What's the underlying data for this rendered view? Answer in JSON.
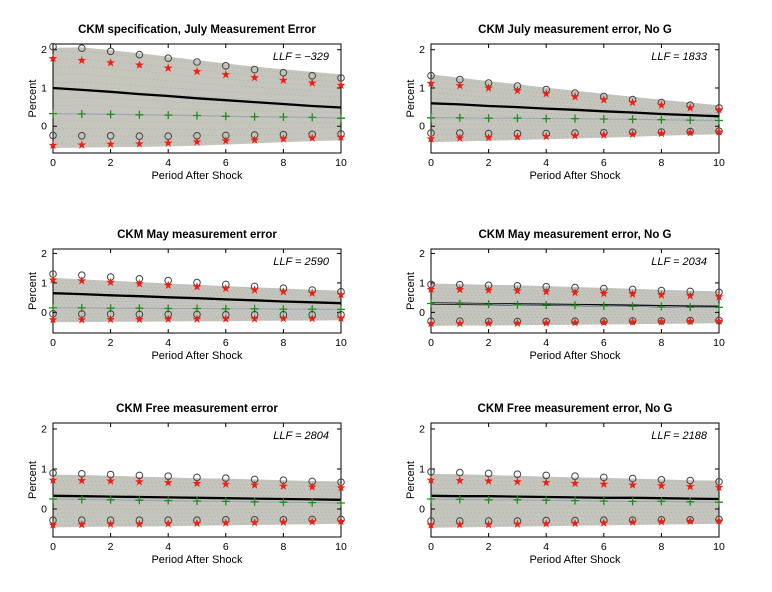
{
  "figure": {
    "background": "#ffffff",
    "xlabel": "Period After Shock",
    "ylabel": "Percent",
    "x_ticks": [
      0,
      2,
      4,
      6,
      8,
      10
    ],
    "y_ticks": [
      0,
      1,
      2
    ],
    "xlim": [
      0,
      10
    ],
    "ylim": [
      -0.7,
      2.15
    ],
    "x_values": [
      0,
      1,
      2,
      3,
      4,
      5,
      6,
      7,
      8,
      9,
      10
    ],
    "grid": false,
    "legend": "none"
  },
  "style": {
    "band_fill": "#c5c5bc",
    "speckle": "#9ea6c6",
    "axis_color": "#000000",
    "line_color": "#000000",
    "star_color": "#ee2014",
    "circle_color": "#424242",
    "plus_color": "#1e8c1e",
    "plus_line_color": "#96a6b4"
  },
  "chart_data": [
    {
      "type": "line",
      "title": "CKM specification, July Measurement Error",
      "llf": "LLF = −329",
      "band": {
        "upper": [
          2.05,
          2.06,
          1.99,
          1.91,
          1.82,
          1.73,
          1.64,
          1.56,
          1.49,
          1.42,
          1.36
        ],
        "lower": [
          -0.57,
          -0.56,
          -0.55,
          -0.54,
          -0.53,
          -0.51,
          -0.48,
          -0.45,
          -0.42,
          -0.39,
          -0.37
        ]
      },
      "series": [
        {
          "name": "upper-confidence-circles",
          "marker": "circle",
          "values": [
            2.08,
            2.04,
            1.96,
            1.87,
            1.78,
            1.68,
            1.58,
            1.48,
            1.4,
            1.32,
            1.26
          ]
        },
        {
          "name": "upper-confidence-stars",
          "marker": "star",
          "values": [
            1.77,
            1.72,
            1.66,
            1.6,
            1.52,
            1.43,
            1.35,
            1.27,
            1.2,
            1.13,
            1.07
          ]
        },
        {
          "name": "point-estimate",
          "line": "solid",
          "values": [
            1.0,
            0.95,
            0.9,
            0.84,
            0.79,
            0.73,
            0.68,
            0.63,
            0.58,
            0.53,
            0.49
          ]
        },
        {
          "name": "true-response-plus",
          "marker": "plus",
          "line": "thin",
          "values": [
            0.33,
            0.32,
            0.31,
            0.3,
            0.29,
            0.28,
            0.26,
            0.25,
            0.24,
            0.23,
            0.21
          ]
        },
        {
          "name": "lower-confidence-circles",
          "marker": "circle",
          "values": [
            -0.24,
            -0.25,
            -0.25,
            -0.26,
            -0.26,
            -0.25,
            -0.24,
            -0.23,
            -0.22,
            -0.21,
            -0.2
          ]
        },
        {
          "name": "lower-confidence-stars",
          "marker": "star",
          "values": [
            -0.5,
            -0.49,
            -0.47,
            -0.46,
            -0.44,
            -0.41,
            -0.38,
            -0.36,
            -0.33,
            -0.31,
            -0.29
          ]
        }
      ]
    },
    {
      "type": "line",
      "title": "CKM July measurement error, No G",
      "llf": "LLF = 1833",
      "band": {
        "upper": [
          1.36,
          1.27,
          1.18,
          1.1,
          1.01,
          0.93,
          0.85,
          0.77,
          0.69,
          0.62,
          0.55
        ],
        "lower": [
          -0.42,
          -0.4,
          -0.38,
          -0.36,
          -0.34,
          -0.32,
          -0.3,
          -0.28,
          -0.25,
          -0.23,
          -0.21
        ]
      },
      "series": [
        {
          "name": "upper-confidence-circles",
          "marker": "circle",
          "values": [
            1.32,
            1.22,
            1.13,
            1.05,
            0.96,
            0.87,
            0.78,
            0.7,
            0.62,
            0.55,
            0.48
          ]
        },
        {
          "name": "upper-confidence-stars",
          "marker": "star",
          "values": [
            1.12,
            1.06,
            1.0,
            0.93,
            0.85,
            0.77,
            0.69,
            0.62,
            0.55,
            0.48,
            0.43
          ]
        },
        {
          "name": "point-estimate",
          "line": "solid",
          "values": [
            0.6,
            0.57,
            0.53,
            0.5,
            0.46,
            0.43,
            0.39,
            0.36,
            0.32,
            0.29,
            0.26
          ]
        },
        {
          "name": "true-response-plus",
          "marker": "plus",
          "line": "thin",
          "values": [
            0.22,
            0.22,
            0.21,
            0.21,
            0.2,
            0.2,
            0.19,
            0.18,
            0.17,
            0.16,
            0.15
          ]
        },
        {
          "name": "lower-confidence-circles",
          "marker": "circle",
          "values": [
            -0.18,
            -0.18,
            -0.19,
            -0.19,
            -0.19,
            -0.18,
            -0.17,
            -0.16,
            -0.15,
            -0.14,
            -0.13
          ]
        },
        {
          "name": "lower-confidence-stars",
          "marker": "star",
          "values": [
            -0.33,
            -0.31,
            -0.3,
            -0.28,
            -0.27,
            -0.25,
            -0.23,
            -0.21,
            -0.19,
            -0.17,
            -0.15
          ]
        }
      ]
    },
    {
      "type": "line",
      "title": "CKM May measurement error",
      "llf": "LLF = 2590",
      "band": {
        "upper": [
          1.17,
          1.12,
          1.07,
          1.03,
          0.98,
          0.94,
          0.89,
          0.85,
          0.81,
          0.77,
          0.74
        ],
        "lower": [
          -0.33,
          -0.33,
          -0.32,
          -0.32,
          -0.31,
          -0.3,
          -0.3,
          -0.29,
          -0.28,
          -0.28,
          -0.27
        ]
      },
      "series": [
        {
          "name": "upper-confidence-circles",
          "marker": "circle",
          "values": [
            1.3,
            1.26,
            1.2,
            1.14,
            1.08,
            1.01,
            0.95,
            0.88,
            0.82,
            0.76,
            0.7
          ]
        },
        {
          "name": "upper-confidence-stars",
          "marker": "star",
          "values": [
            1.1,
            1.07,
            1.02,
            0.97,
            0.92,
            0.87,
            0.81,
            0.76,
            0.7,
            0.65,
            0.6
          ]
        },
        {
          "name": "point-estimate",
          "line": "solid",
          "values": [
            0.65,
            0.62,
            0.58,
            0.55,
            0.51,
            0.48,
            0.44,
            0.41,
            0.37,
            0.34,
            0.31
          ]
        },
        {
          "name": "true-response-plus",
          "marker": "plus",
          "line": "thin",
          "values": [
            0.15,
            0.15,
            0.14,
            0.14,
            0.13,
            0.13,
            0.12,
            0.12,
            0.11,
            0.11,
            0.1
          ]
        },
        {
          "name": "lower-confidence-circles",
          "marker": "circle",
          "values": [
            -0.05,
            -0.06,
            -0.06,
            -0.07,
            -0.07,
            -0.07,
            -0.08,
            -0.08,
            -0.08,
            -0.08,
            -0.08
          ]
        },
        {
          "name": "lower-confidence-stars",
          "marker": "star",
          "values": [
            -0.25,
            -0.25,
            -0.24,
            -0.24,
            -0.23,
            -0.23,
            -0.22,
            -0.22,
            -0.21,
            -0.21,
            -0.2
          ]
        }
      ]
    },
    {
      "type": "line",
      "title": "CKM May measurement error, No G",
      "llf": "LLF = 2034",
      "band": {
        "upper": [
          0.98,
          0.96,
          0.94,
          0.92,
          0.89,
          0.86,
          0.83,
          0.8,
          0.77,
          0.74,
          0.71
        ],
        "lower": [
          -0.46,
          -0.45,
          -0.45,
          -0.44,
          -0.43,
          -0.42,
          -0.41,
          -0.4,
          -0.39,
          -0.38,
          -0.37
        ]
      },
      "series": [
        {
          "name": "upper-confidence-circles",
          "marker": "circle",
          "values": [
            0.95,
            0.94,
            0.92,
            0.9,
            0.87,
            0.84,
            0.81,
            0.78,
            0.74,
            0.71,
            0.68
          ]
        },
        {
          "name": "upper-confidence-stars",
          "marker": "star",
          "values": [
            0.78,
            0.77,
            0.75,
            0.73,
            0.7,
            0.67,
            0.64,
            0.62,
            0.59,
            0.56,
            0.53
          ]
        },
        {
          "name": "point-estimate",
          "line": "solid",
          "values": [
            0.3,
            0.29,
            0.28,
            0.27,
            0.26,
            0.25,
            0.24,
            0.23,
            0.21,
            0.2,
            0.19
          ]
        },
        {
          "name": "true-response-plus",
          "marker": "plus",
          "line": "thin",
          "values": [
            0.3,
            0.29,
            0.28,
            0.26,
            0.25,
            0.24,
            0.22,
            0.21,
            0.2,
            0.18,
            0.17
          ]
        },
        {
          "name": "lower-confidence-circles",
          "marker": "circle",
          "values": [
            -0.3,
            -0.3,
            -0.31,
            -0.31,
            -0.31,
            -0.3,
            -0.3,
            -0.29,
            -0.29,
            -0.28,
            -0.28
          ]
        },
        {
          "name": "lower-confidence-stars",
          "marker": "star",
          "values": [
            -0.38,
            -0.38,
            -0.37,
            -0.37,
            -0.36,
            -0.35,
            -0.34,
            -0.33,
            -0.32,
            -0.31,
            -0.3
          ]
        }
      ]
    },
    {
      "type": "line",
      "title": "CKM Free measurement error",
      "llf": "LLF = 2804",
      "band": {
        "upper": [
          0.86,
          0.85,
          0.83,
          0.81,
          0.79,
          0.77,
          0.76,
          0.74,
          0.72,
          0.7,
          0.69
        ],
        "lower": [
          -0.46,
          -0.45,
          -0.44,
          -0.44,
          -0.43,
          -0.42,
          -0.41,
          -0.4,
          -0.39,
          -0.38,
          -0.37
        ]
      },
      "series": [
        {
          "name": "upper-confidence-circles",
          "marker": "circle",
          "values": [
            0.9,
            0.88,
            0.86,
            0.84,
            0.82,
            0.79,
            0.77,
            0.74,
            0.72,
            0.69,
            0.67
          ]
        },
        {
          "name": "upper-confidence-stars",
          "marker": "star",
          "values": [
            0.72,
            0.71,
            0.7,
            0.68,
            0.66,
            0.64,
            0.62,
            0.6,
            0.57,
            0.55,
            0.53
          ]
        },
        {
          "name": "point-estimate",
          "line": "solid",
          "values": [
            0.33,
            0.32,
            0.31,
            0.3,
            0.29,
            0.28,
            0.27,
            0.26,
            0.25,
            0.24,
            0.23
          ]
        },
        {
          "name": "true-response-plus",
          "marker": "plus",
          "line": "thin",
          "values": [
            0.25,
            0.24,
            0.23,
            0.22,
            0.21,
            0.2,
            0.19,
            0.18,
            0.17,
            0.16,
            0.15
          ]
        },
        {
          "name": "lower-confidence-circles",
          "marker": "circle",
          "values": [
            -0.28,
            -0.28,
            -0.28,
            -0.28,
            -0.28,
            -0.28,
            -0.27,
            -0.27,
            -0.27,
            -0.26,
            -0.26
          ]
        },
        {
          "name": "lower-confidence-stars",
          "marker": "star",
          "values": [
            -0.4,
            -0.39,
            -0.38,
            -0.38,
            -0.37,
            -0.36,
            -0.35,
            -0.34,
            -0.33,
            -0.32,
            -0.31
          ]
        }
      ]
    },
    {
      "type": "line",
      "title": "CKM Free measurement error, No G",
      "llf": "LLF = 2188",
      "band": {
        "upper": [
          0.88,
          0.87,
          0.85,
          0.83,
          0.81,
          0.79,
          0.78,
          0.76,
          0.74,
          0.72,
          0.71
        ],
        "lower": [
          -0.47,
          -0.46,
          -0.45,
          -0.44,
          -0.43,
          -0.42,
          -0.41,
          -0.4,
          -0.39,
          -0.38,
          -0.37
        ]
      },
      "series": [
        {
          "name": "upper-confidence-circles",
          "marker": "circle",
          "values": [
            0.93,
            0.91,
            0.89,
            0.87,
            0.84,
            0.82,
            0.79,
            0.76,
            0.73,
            0.71,
            0.68
          ]
        },
        {
          "name": "upper-confidence-stars",
          "marker": "star",
          "values": [
            0.72,
            0.71,
            0.7,
            0.68,
            0.66,
            0.64,
            0.62,
            0.6,
            0.58,
            0.56,
            0.54
          ]
        },
        {
          "name": "point-estimate",
          "line": "solid",
          "values": [
            0.33,
            0.32,
            0.32,
            0.31,
            0.3,
            0.29,
            0.28,
            0.28,
            0.27,
            0.26,
            0.25
          ]
        },
        {
          "name": "true-response-plus",
          "marker": "plus",
          "line": "thin",
          "values": [
            0.25,
            0.24,
            0.23,
            0.23,
            0.22,
            0.21,
            0.2,
            0.19,
            0.19,
            0.18,
            0.17
          ]
        },
        {
          "name": "lower-confidence-circles",
          "marker": "circle",
          "values": [
            -0.3,
            -0.3,
            -0.3,
            -0.3,
            -0.29,
            -0.29,
            -0.28,
            -0.28,
            -0.27,
            -0.27,
            -0.26
          ]
        },
        {
          "name": "lower-confidence-stars",
          "marker": "star",
          "values": [
            -0.4,
            -0.39,
            -0.39,
            -0.38,
            -0.37,
            -0.36,
            -0.35,
            -0.33,
            -0.32,
            -0.31,
            -0.3
          ]
        }
      ]
    }
  ]
}
